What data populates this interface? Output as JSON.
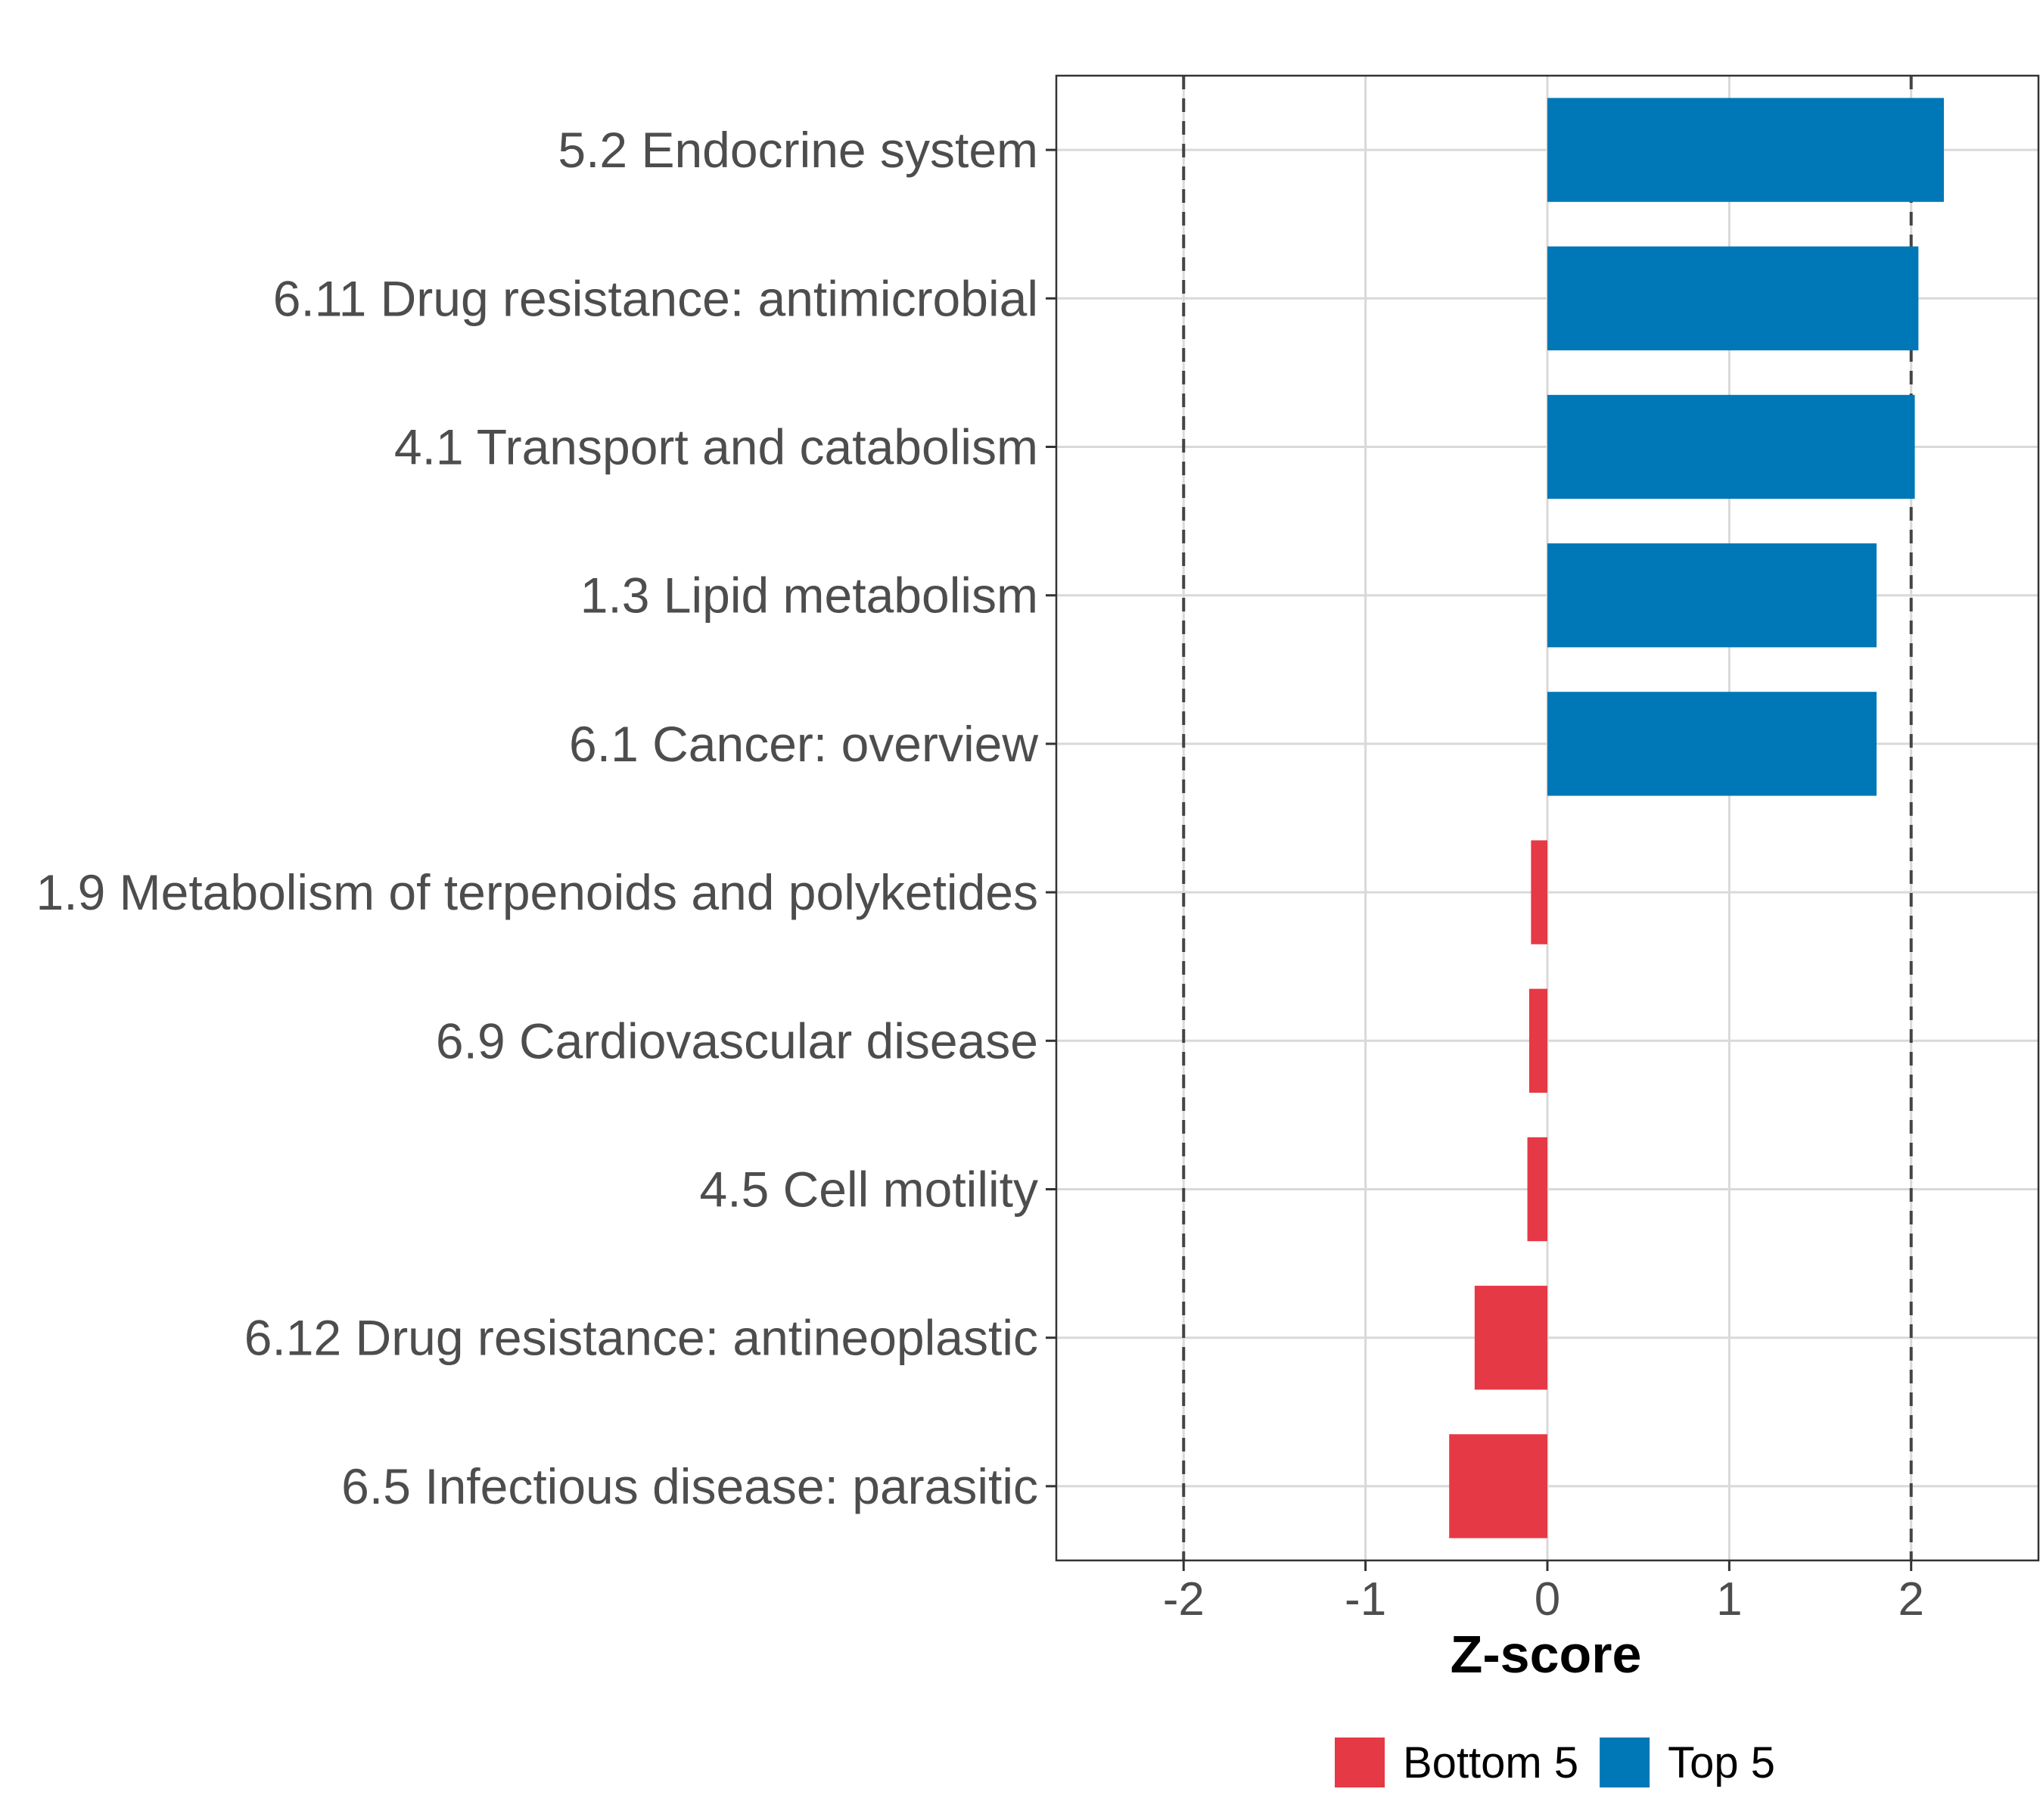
{
  "chart_data": {
    "type": "bar",
    "orientation": "horizontal",
    "title": "",
    "xlabel": "Z-score",
    "ylabel": "",
    "xlim": [
      -2.7,
      2.7
    ],
    "xticks": [
      -2,
      -1,
      0,
      1,
      2
    ],
    "xtick_labels": [
      "-2",
      "-1",
      "0",
      "1",
      "2"
    ],
    "reference_lines": [
      -2,
      2
    ],
    "grid": true,
    "legend_position": "bottom",
    "categories": [
      "5.2 Endocrine system",
      "6.11 Drug resistance: antimicrobial",
      "4.1 Transport and catabolism",
      "1.3 Lipid metabolism",
      "6.1 Cancer: overview",
      "1.9 Metabolism of terpenoids and polyketides",
      "6.9 Cardiovascular disease",
      "4.5 Cell motility",
      "6.12 Drug resistance: antineoplastic",
      "6.5 Infectious disease: parasitic"
    ],
    "values": [
      2.18,
      2.04,
      2.02,
      1.81,
      1.81,
      -0.09,
      -0.1,
      -0.11,
      -0.4,
      -0.54
    ],
    "groups": [
      "Top 5",
      "Top 5",
      "Top 5",
      "Top 5",
      "Top 5",
      "Bottom 5",
      "Bottom 5",
      "Bottom 5",
      "Bottom 5",
      "Bottom 5"
    ],
    "legend": [
      {
        "name": "Bottom 5",
        "color": "#e63946"
      },
      {
        "name": "Top 5",
        "color": "#0077b6"
      }
    ]
  }
}
